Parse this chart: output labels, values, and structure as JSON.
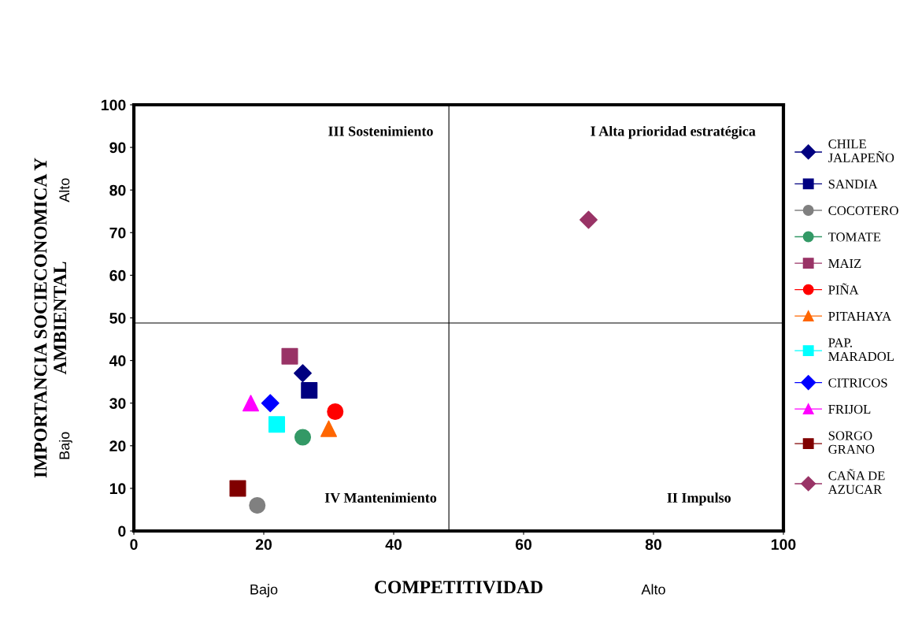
{
  "chart_data": {
    "type": "scatter",
    "xlabel": "COMPETITIVIDAD",
    "ylabel": "IMPORTANCIA SOCIECONOMICA Y\nAMBIENTAL",
    "xlim": [
      0,
      100
    ],
    "xticks": [
      0,
      20,
      40,
      60,
      80,
      100
    ],
    "ylim": [
      0,
      100
    ],
    "yticks": [
      0,
      10,
      20,
      30,
      40,
      50,
      60,
      70,
      80,
      90,
      100
    ],
    "grid": false,
    "legend": "right",
    "ref_lines": [
      {
        "axis": "x",
        "value": 48.5,
        "color": "#000000"
      },
      {
        "axis": "y",
        "value": 48.8,
        "color": "#000000"
      }
    ],
    "annotations": [
      "III Sostenimiento",
      "I Alta prioridad estratégica",
      "IV Mantenimiento",
      "II Impulso",
      "Bajo",
      "Alto",
      "Bajo",
      "Alto"
    ],
    "series": [
      {
        "name": "CHILE\nJALAPEÑO",
        "color": "#000080",
        "marker": "diamond",
        "x": [
          26
        ],
        "values": [
          37
        ]
      },
      {
        "name": "SANDIA",
        "color": "#000080",
        "marker": "square",
        "x": [
          27
        ],
        "values": [
          33
        ]
      },
      {
        "name": "COCOTERO",
        "color": "#808080",
        "marker": "circle",
        "x": [
          19
        ],
        "values": [
          6
        ]
      },
      {
        "name": "TOMATE",
        "color": "#339966",
        "marker": "circle",
        "x": [
          26
        ],
        "values": [
          22
        ]
      },
      {
        "name": "MAIZ",
        "color": "#993366",
        "marker": "square",
        "x": [
          24
        ],
        "values": [
          41
        ]
      },
      {
        "name": "PIÑA",
        "color": "#ff0000",
        "marker": "circle",
        "x": [
          31
        ],
        "values": [
          28
        ]
      },
      {
        "name": "PITAHAYA",
        "color": "#ff6600",
        "marker": "triangle",
        "x": [
          30
        ],
        "values": [
          24
        ]
      },
      {
        "name": "PAP.\nMARADOL",
        "color": "#00ffff",
        "marker": "square",
        "x": [
          22
        ],
        "values": [
          25
        ]
      },
      {
        "name": "CITRICOS",
        "color": "#0000ff",
        "marker": "diamond",
        "x": [
          21
        ],
        "values": [
          30
        ]
      },
      {
        "name": "FRIJOL",
        "color": "#ff00ff",
        "marker": "triangle",
        "x": [
          18
        ],
        "values": [
          30
        ]
      },
      {
        "name": "SORGO\nGRANO",
        "color": "#800000",
        "marker": "square",
        "x": [
          16
        ],
        "values": [
          10
        ]
      },
      {
        "name": "CAÑA DE\nAZUCAR",
        "color": "#993366",
        "marker": "diamond",
        "x": [
          70
        ],
        "values": [
          73
        ]
      }
    ]
  }
}
